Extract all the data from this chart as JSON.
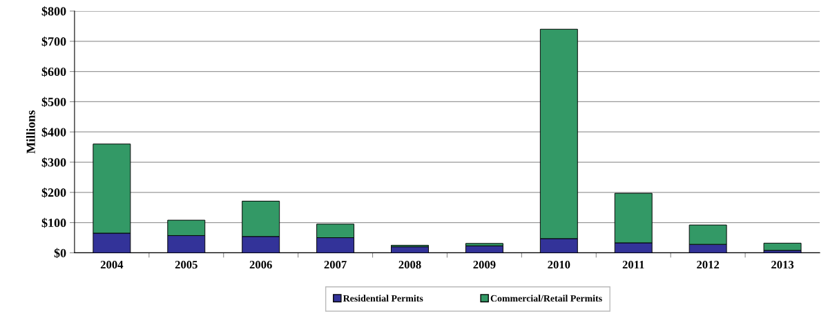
{
  "chart_data": {
    "type": "bar",
    "stacked": true,
    "ylabel": "Millions",
    "categories": [
      "2004",
      "2005",
      "2006",
      "2007",
      "2008",
      "2009",
      "2010",
      "2011",
      "2012",
      "2013"
    ],
    "series": [
      {
        "name": "Residential Permits",
        "color": "#333399",
        "values": [
          65,
          57,
          54,
          50,
          20,
          23,
          47,
          33,
          28,
          8
        ]
      },
      {
        "name": "Commercial/Retail Permits",
        "color": "#339966",
        "values": [
          295,
          51,
          117,
          45,
          5,
          8,
          693,
          164,
          64,
          24
        ]
      }
    ],
    "ylim": [
      0,
      800
    ],
    "yticks": [
      {
        "value": 0,
        "label": "$0"
      },
      {
        "value": 100,
        "label": "$100"
      },
      {
        "value": 200,
        "label": "$200"
      },
      {
        "value": 300,
        "label": "$300"
      },
      {
        "value": 400,
        "label": "$400"
      },
      {
        "value": 500,
        "label": "$500"
      },
      {
        "value": 600,
        "label": "$600"
      },
      {
        "value": 700,
        "label": "$700"
      },
      {
        "value": 800,
        "label": "$800"
      }
    ],
    "grid": "y",
    "legend": "bottom"
  }
}
